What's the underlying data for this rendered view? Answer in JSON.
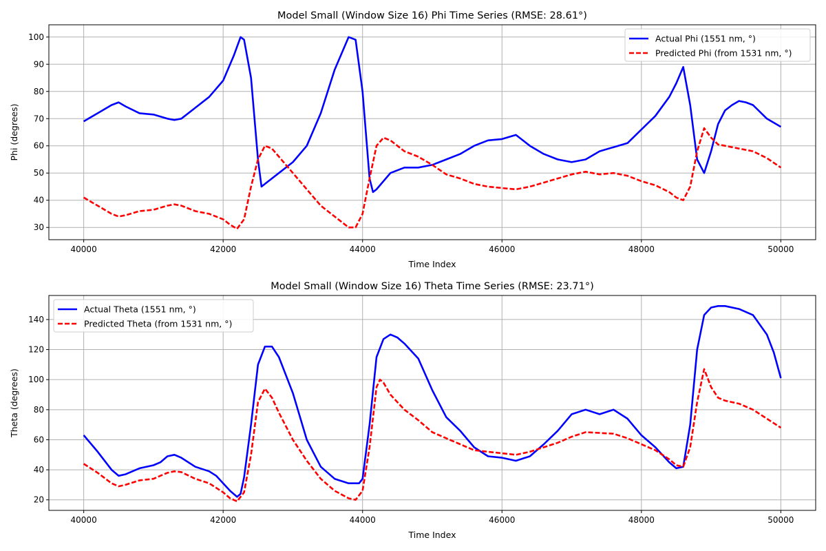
{
  "chart_data": [
    {
      "type": "line",
      "title": "Model Small (Window Size 16) Phi Time Series (RMSE: 28.61°)",
      "xlabel": "Time Index",
      "ylabel": "Phi (degrees)",
      "xlim": [
        39500,
        50500
      ],
      "ylim": [
        25.5,
        104.5
      ],
      "xticks": [
        40000,
        42000,
        44000,
        46000,
        48000,
        50000
      ],
      "yticks": [
        30,
        40,
        50,
        60,
        70,
        80,
        90,
        100
      ],
      "grid": true,
      "legend_position": "upper right",
      "series": [
        {
          "name": "Actual Phi (1551 nm, °)",
          "color": "#0000ff",
          "style": "solid",
          "x": [
            40000,
            40200,
            40400,
            40500,
            40600,
            40800,
            41000,
            41200,
            41300,
            41400,
            41600,
            41800,
            42000,
            42150,
            42250,
            42300,
            42400,
            42500,
            42550,
            42600,
            42800,
            43000,
            43200,
            43400,
            43600,
            43800,
            43900,
            44000,
            44100,
            44150,
            44200,
            44400,
            44600,
            44800,
            45000,
            45200,
            45400,
            45600,
            45800,
            46000,
            46200,
            46400,
            46600,
            46800,
            47000,
            47200,
            47400,
            47600,
            47800,
            48000,
            48200,
            48400,
            48500,
            48600,
            48700,
            48800,
            48900,
            49000,
            49100,
            49200,
            49300,
            49400,
            49500,
            49600,
            49800,
            50000
          ],
          "y": [
            69,
            72,
            75,
            76,
            74.5,
            72,
            71.5,
            70,
            69.5,
            70,
            74,
            78,
            84,
            93,
            100,
            99,
            85,
            55,
            45,
            46,
            50,
            54,
            60,
            72,
            88,
            100,
            99,
            80,
            48,
            43,
            44,
            50,
            52,
            52,
            53,
            55,
            57,
            60,
            62,
            62.5,
            64,
            60,
            57,
            55,
            54,
            55,
            58,
            59.5,
            61,
            66,
            71,
            78,
            83,
            89,
            75,
            55,
            50,
            58,
            68,
            73,
            75,
            76.5,
            76,
            75,
            70,
            67
          ]
        },
        {
          "name": "Predicted Phi (from 1531 nm, °)",
          "color": "#ff0000",
          "style": "dashed",
          "x": [
            40000,
            40200,
            40400,
            40500,
            40600,
            40800,
            41000,
            41200,
            41300,
            41400,
            41600,
            41800,
            42000,
            42100,
            42200,
            42300,
            42400,
            42500,
            42600,
            42700,
            42800,
            43000,
            43200,
            43400,
            43600,
            43800,
            43900,
            44000,
            44100,
            44200,
            44300,
            44400,
            44600,
            44800,
            45000,
            45200,
            45400,
            45600,
            45800,
            46000,
            46200,
            46400,
            46600,
            46800,
            47000,
            47200,
            47400,
            47600,
            47800,
            48000,
            48200,
            48400,
            48500,
            48600,
            48700,
            48800,
            48900,
            49000,
            49100,
            49200,
            49400,
            49600,
            49800,
            50000
          ],
          "y": [
            41,
            38,
            35,
            34,
            34.5,
            36,
            36.5,
            38,
            38.5,
            38,
            36,
            35,
            33,
            31,
            29.5,
            33,
            45,
            55,
            60,
            59,
            56,
            50,
            44,
            38,
            34,
            30,
            30,
            35,
            48,
            60,
            63,
            62,
            58,
            56,
            53,
            49.5,
            48,
            46,
            45,
            44.5,
            44,
            45,
            46.5,
            48,
            49.5,
            50.5,
            49.5,
            50,
            49,
            47,
            45.5,
            43,
            41,
            40,
            45,
            58,
            66.5,
            63,
            60.5,
            60,
            59,
            58,
            55.5,
            52
          ]
        }
      ]
    },
    {
      "type": "line",
      "title": "Model Small (Window Size 16) Theta Time Series (RMSE: 23.71°)",
      "xlabel": "Time Index",
      "ylabel": "Theta (degrees)",
      "xlim": [
        39500,
        50500
      ],
      "ylim": [
        13,
        156
      ],
      "xticks": [
        40000,
        42000,
        44000,
        46000,
        48000,
        50000
      ],
      "yticks": [
        20,
        40,
        60,
        80,
        100,
        120,
        140
      ],
      "grid": true,
      "legend_position": "upper left",
      "series": [
        {
          "name": "Actual Theta (1551 nm, °)",
          "color": "#0000ff",
          "style": "solid",
          "x": [
            40000,
            40200,
            40400,
            40500,
            40600,
            40800,
            41000,
            41100,
            41200,
            41300,
            41400,
            41600,
            41800,
            41900,
            42000,
            42100,
            42200,
            42250,
            42300,
            42400,
            42500,
            42600,
            42700,
            42800,
            43000,
            43200,
            43400,
            43600,
            43800,
            43950,
            44000,
            44100,
            44200,
            44300,
            44400,
            44500,
            44600,
            44800,
            45000,
            45200,
            45400,
            45600,
            45800,
            46000,
            46200,
            46400,
            46600,
            46800,
            47000,
            47200,
            47400,
            47600,
            47800,
            48000,
            48200,
            48400,
            48500,
            48600,
            48700,
            48800,
            48900,
            49000,
            49100,
            49200,
            49400,
            49600,
            49800,
            49900,
            50000
          ],
          "y": [
            63,
            52,
            40,
            36,
            37,
            41,
            43,
            45,
            49,
            50,
            48,
            42,
            39,
            36,
            31,
            26,
            22,
            24,
            35,
            70,
            110,
            122,
            122,
            115,
            91,
            60,
            42,
            34,
            31,
            31,
            34,
            70,
            115,
            127,
            130,
            128,
            124,
            114,
            93,
            75,
            66,
            55,
            49,
            48,
            46,
            49,
            57,
            66,
            77,
            80,
            77,
            80,
            74,
            63,
            55,
            45,
            41,
            42,
            70,
            120,
            143,
            148,
            149,
            149,
            147,
            143,
            130,
            118,
            101
          ]
        },
        {
          "name": "Predicted Theta (from 1531 nm, °)",
          "color": "#ff0000",
          "style": "dashed",
          "x": [
            40000,
            40200,
            40400,
            40500,
            40600,
            40800,
            41000,
            41100,
            41200,
            41300,
            41400,
            41600,
            41800,
            42000,
            42100,
            42200,
            42300,
            42400,
            42500,
            42600,
            42700,
            42800,
            43000,
            43200,
            43400,
            43600,
            43800,
            43900,
            44000,
            44100,
            44200,
            44250,
            44300,
            44400,
            44600,
            44800,
            45000,
            45200,
            45400,
            45600,
            45800,
            46000,
            46200,
            46400,
            46600,
            46800,
            47000,
            47200,
            47400,
            47600,
            47800,
            48000,
            48200,
            48400,
            48500,
            48600,
            48700,
            48800,
            48900,
            49000,
            49100,
            49200,
            49400,
            49600,
            49800,
            50000
          ],
          "y": [
            44,
            38,
            31,
            29,
            30,
            33,
            34,
            36,
            38,
            39,
            38.5,
            34,
            31,
            25,
            21,
            19,
            25,
            50,
            85,
            94,
            88,
            78,
            60,
            46,
            34,
            26,
            21,
            20,
            26,
            55,
            95,
            100,
            98,
            90,
            80,
            73,
            65,
            61,
            57,
            53,
            52,
            51,
            50,
            52,
            55,
            58,
            62,
            65,
            64.5,
            64,
            61,
            57,
            53,
            47,
            43,
            42,
            55,
            85,
            107,
            95,
            88,
            86,
            84,
            80,
            74,
            68
          ]
        }
      ]
    }
  ]
}
